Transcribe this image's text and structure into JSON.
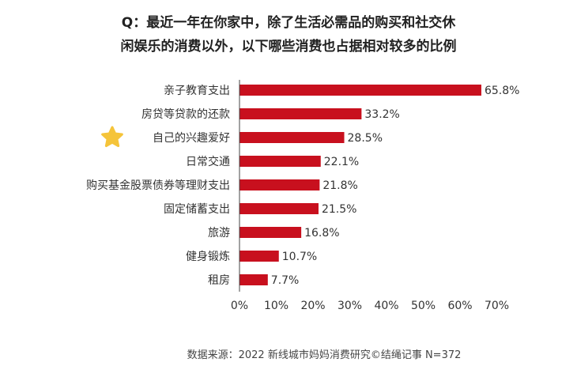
{
  "title": {
    "line1": "Q：最近一年在你家中，除了生活必需品的购买和社交休",
    "line2": "闲娱乐的消费以外，以下哪些消费也占据相对较多的比例"
  },
  "source": "数据来源：2022 新线城市妈妈消费研究©结绳记事 N=372",
  "colors": {
    "bar": "#c8101e",
    "star": "#f5c43a",
    "axis": "#444444"
  },
  "highlight_icon": "star-icon",
  "chart_data": {
    "type": "bar",
    "orientation": "horizontal",
    "categories": [
      "亲子教育支出",
      "房贷等贷款的还款",
      "自己的兴趣爱好",
      "日常交通",
      "购买基金股票债券等理财支出",
      "固定储蓄支出",
      "旅游",
      "健身锻炼",
      "租房"
    ],
    "values": [
      65.8,
      33.2,
      28.5,
      22.1,
      21.8,
      21.5,
      16.8,
      10.7,
      7.7
    ],
    "value_labels": [
      "65.8%",
      "33.2%",
      "28.5%",
      "22.1%",
      "21.8%",
      "21.5%",
      "16.8%",
      "10.7%",
      "7.7%"
    ],
    "highlighted_category_index": 2,
    "xlim": [
      0,
      70
    ],
    "xticks": [
      "0%",
      "10%",
      "20%",
      "30%",
      "40%",
      "50%",
      "60%",
      "70%"
    ],
    "xtick_values": [
      0,
      10,
      20,
      30,
      40,
      50,
      60,
      70
    ],
    "grid": false,
    "legend": "none"
  }
}
